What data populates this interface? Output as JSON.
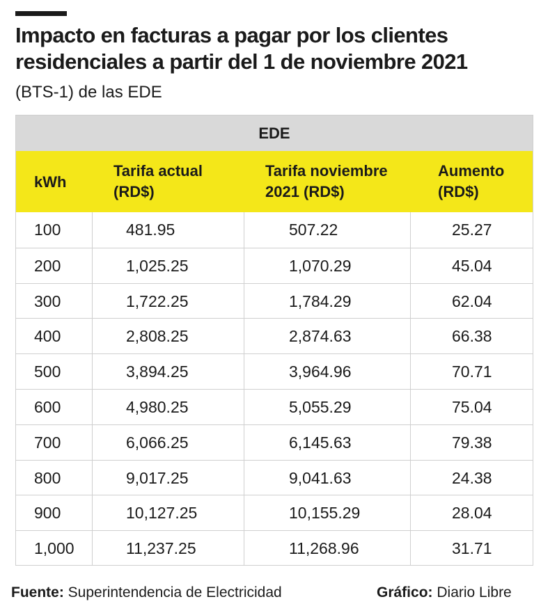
{
  "title": "Impacto en facturas a pagar por los clientes residenciales a partir del 1 de noviembre 2021",
  "subtitle": "(BTS-1) de las EDE",
  "chart_data": {
    "type": "table",
    "group_header": "EDE",
    "columns": [
      "kWh",
      "Tarifa actual (RD$)",
      "Tarifa noviembre 2021 (RD$)",
      "Aumento (RD$)"
    ],
    "rows": [
      [
        "100",
        "481.95",
        "507.22",
        "25.27"
      ],
      [
        "200",
        "1,025.25",
        "1,070.29",
        "45.04"
      ],
      [
        "300",
        "1,722.25",
        "1,784.29",
        "62.04"
      ],
      [
        "400",
        "2,808.25",
        "2,874.63",
        "66.38"
      ],
      [
        "500",
        "3,894.25",
        "3,964.96",
        "70.71"
      ],
      [
        "600",
        "4,980.25",
        "5,055.29",
        "75.04"
      ],
      [
        "700",
        "6,066.25",
        "6,145.63",
        "79.38"
      ],
      [
        "800",
        "9,017.25",
        "9,041.63",
        "24.38"
      ],
      [
        "900",
        "10,127.25",
        "10,155.29",
        "28.04"
      ],
      [
        "1,000",
        "11,237.25",
        "11,268.96",
        "31.71"
      ]
    ],
    "header_color": "#d9d9d9",
    "column_header_color": "#f4e719"
  },
  "footer": {
    "source_label": "Fuente:",
    "source_value": "Superintendencia de Electricidad",
    "graphic_label": "Gráfico:",
    "graphic_value": "Diario Libre"
  }
}
